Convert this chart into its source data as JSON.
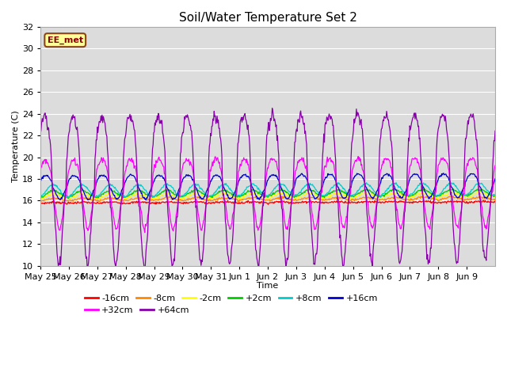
{
  "title": "Soil/Water Temperature Set 2",
  "xlabel": "Time",
  "ylabel": "Temperature (C)",
  "ylim": [
    10,
    32
  ],
  "yticks": [
    10,
    12,
    14,
    16,
    18,
    20,
    22,
    24,
    26,
    28,
    30,
    32
  ],
  "plot_bg_color": "#dcdcdc",
  "fig_bg_color": "#ffffff",
  "label_box_text": "EE_met",
  "label_box_bg": "#ffff99",
  "label_box_edge": "#8b4513",
  "series_order": [
    "-16cm",
    "-8cm",
    "-2cm",
    "+2cm",
    "+8cm",
    "+16cm",
    "+32cm",
    "+64cm"
  ],
  "series": {
    "-16cm": {
      "color": "#ff0000",
      "base": 15.8,
      "amplitude": 0.05,
      "phase": 0.0,
      "trend": 0.006
    },
    "-8cm": {
      "color": "#ff8800",
      "base": 16.1,
      "amplitude": 0.12,
      "phase": 0.1,
      "trend": 0.007
    },
    "-2cm": {
      "color": "#ffff00",
      "base": 16.4,
      "amplitude": 0.22,
      "phase": 0.2,
      "trend": 0.008
    },
    "+2cm": {
      "color": "#00cc00",
      "base": 16.6,
      "amplitude": 0.3,
      "phase": 0.25,
      "trend": 0.009
    },
    "+8cm": {
      "color": "#00cccc",
      "base": 16.9,
      "amplitude": 0.55,
      "phase": 0.3,
      "trend": 0.01
    },
    "+16cm": {
      "color": "#0000cc",
      "base": 17.2,
      "amplitude": 1.1,
      "phase": 0.4,
      "trend": 0.011
    },
    "+32cm": {
      "color": "#ff00ff",
      "base": 16.5,
      "amplitude": 3.2,
      "phase": 0.5,
      "trend": 0.015
    },
    "+64cm": {
      "color": "#8800aa",
      "base": 16.8,
      "amplitude": 6.8,
      "phase": 0.6,
      "trend": 0.02
    }
  },
  "n_days": 16,
  "pts_per_day": 48,
  "xtick_labels": [
    "May 25",
    "May 26",
    "May 27",
    "May 28",
    "May 29",
    "May 30",
    "May 31",
    "Jun 1",
    "Jun 2",
    "Jun 3",
    "Jun 4",
    "Jun 5",
    "Jun 6",
    "Jun 7",
    "Jun 8",
    "Jun 9"
  ]
}
